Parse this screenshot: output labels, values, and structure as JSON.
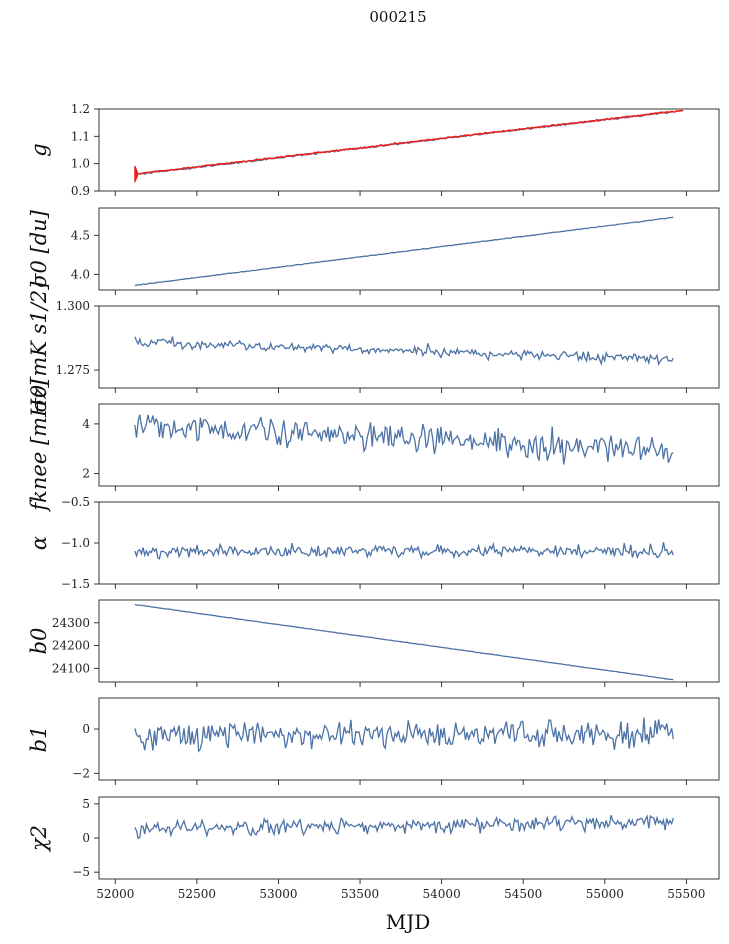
{
  "title": "000215",
  "xlabel": "MJD",
  "x_ticks": [
    "52000",
    "52500",
    "53000",
    "53500",
    "54000",
    "54500",
    "55000",
    "55500"
  ],
  "chart_data": [
    {
      "type": "line",
      "ylabel": "g",
      "xlim": [
        51900,
        55700
      ],
      "ylim": [
        0.9,
        1.2
      ],
      "yticks": [
        0.9,
        1.0,
        1.1,
        1.2
      ],
      "ytick_labels": [
        "0.9",
        "1.0",
        "1.1",
        "1.2"
      ],
      "color": "#4c72a6",
      "x_start": 52120,
      "x_end": 55420,
      "trend_start": 0.96,
      "trend_end": 1.19,
      "noise": 0.003,
      "overlay": {
        "color": "#e8211c",
        "x_start": 52120,
        "x_end": 55480,
        "trend_start": 0.962,
        "trend_end": 1.195
      }
    },
    {
      "type": "line",
      "ylabel": "σ0 [du]",
      "xlim": [
        51900,
        55700
      ],
      "ylim": [
        3.8,
        4.85
      ],
      "yticks": [
        4.0,
        4.5
      ],
      "ytick_labels": [
        "4.0",
        "4.5"
      ],
      "color": "#4c72a6",
      "x_start": 52120,
      "x_end": 55420,
      "trend_start": 3.86,
      "trend_end": 4.73,
      "noise": 0.004
    },
    {
      "type": "line",
      "ylabel": "σ0[mK s1/2]",
      "xlim": [
        51900,
        55700
      ],
      "ylim": [
        1.268,
        1.3
      ],
      "yticks": [
        1.275,
        1.3
      ],
      "ytick_labels": [
        "1.275",
        "1.300"
      ],
      "color": "#4c72a6",
      "x_start": 52120,
      "x_end": 55420,
      "trend_start": 1.286,
      "trend_end": 1.279,
      "noise": 0.0015
    },
    {
      "type": "line",
      "ylabel": "fknee [mHz]",
      "xlim": [
        51900,
        55700
      ],
      "ylim": [
        1.5,
        4.8
      ],
      "yticks": [
        2,
        4
      ],
      "ytick_labels": [
        "2",
        "4"
      ],
      "color": "#4c72a6",
      "x_start": 52120,
      "x_end": 55420,
      "trend_start": 3.9,
      "trend_end": 2.9,
      "noise": 0.45
    },
    {
      "type": "line",
      "ylabel": "α",
      "xlim": [
        51900,
        55700
      ],
      "ylim": [
        -1.5,
        -0.5
      ],
      "yticks": [
        -1.5,
        -1.0,
        -0.5
      ],
      "ytick_labels": [
        "−1.5",
        "−1.0",
        "−0.5"
      ],
      "color": "#4c72a6",
      "x_start": 52120,
      "x_end": 55420,
      "trend_start": -1.1,
      "trend_end": -1.1,
      "noise": 0.06
    },
    {
      "type": "line",
      "ylabel": "b0",
      "xlim": [
        51900,
        55700
      ],
      "ylim": [
        24040,
        24400
      ],
      "yticks": [
        24100,
        24200,
        24300
      ],
      "ytick_labels": [
        "24100",
        "24200",
        "24300"
      ],
      "color": "#4c72a6",
      "x_start": 52120,
      "x_end": 55420,
      "trend_start": 24380,
      "trend_end": 24050,
      "noise": 0.8
    },
    {
      "type": "line",
      "ylabel": "b1",
      "xlim": [
        51900,
        55700
      ],
      "ylim": [
        -2.3,
        1.4
      ],
      "yticks": [
        -2,
        0
      ],
      "ytick_labels": [
        "−2",
        "0"
      ],
      "color": "#4c72a6",
      "x_start": 52120,
      "x_end": 55420,
      "trend_start": -0.3,
      "trend_end": -0.2,
      "noise": 0.5
    },
    {
      "type": "line",
      "ylabel": "χ2",
      "xlim": [
        51900,
        55700
      ],
      "ylim": [
        -6,
        6
      ],
      "yticks": [
        -5,
        0,
        5
      ],
      "ytick_labels": [
        "−5",
        "0",
        "5"
      ],
      "color": "#4c72a6",
      "x_start": 52120,
      "x_end": 55420,
      "trend_start": 1.3,
      "trend_end": 2.3,
      "noise": 0.9
    }
  ]
}
